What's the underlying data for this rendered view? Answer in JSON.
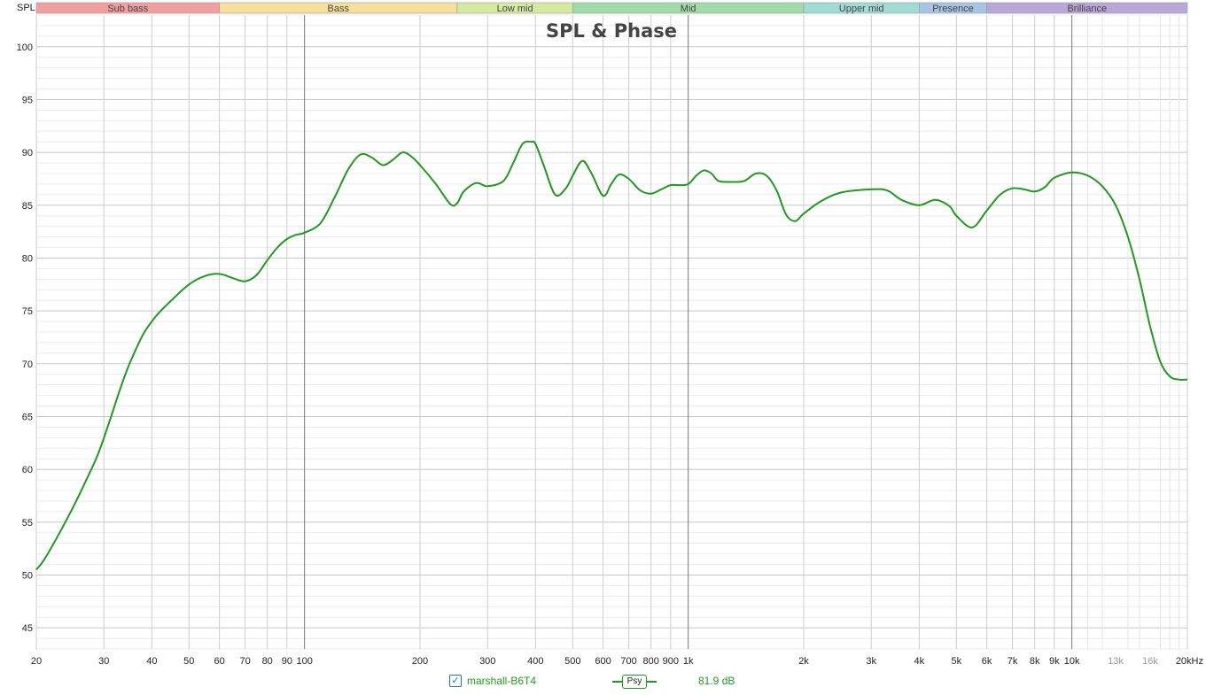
{
  "chart_data": {
    "type": "line",
    "title": "SPL & Phase",
    "ylabel": "SPL",
    "xscale": "log",
    "xlim": [
      20,
      20000
    ],
    "ylim": [
      43,
      103
    ],
    "grid": true,
    "bands": [
      {
        "name": "Sub bass",
        "from": 20,
        "to": 60,
        "color": "#f0a0a0"
      },
      {
        "name": "Bass",
        "from": 60,
        "to": 250,
        "color": "#f7df9c"
      },
      {
        "name": "Low mid",
        "from": 250,
        "to": 500,
        "color": "#d4eaa0"
      },
      {
        "name": "Mid",
        "from": 500,
        "to": 2000,
        "color": "#a0dca8"
      },
      {
        "name": "Upper mid",
        "from": 2000,
        "to": 4000,
        "color": "#a0dcd4"
      },
      {
        "name": "Presence",
        "from": 4000,
        "to": 6000,
        "color": "#a8c4e4"
      },
      {
        "name": "Brilliance",
        "from": 6000,
        "to": 20000,
        "color": "#b8a8d8"
      }
    ],
    "y_ticks": [
      45,
      50,
      55,
      60,
      65,
      70,
      75,
      80,
      85,
      90,
      95,
      100
    ],
    "x_ticks": [
      {
        "v": 20,
        "label": "20"
      },
      {
        "v": 30,
        "label": "30"
      },
      {
        "v": 40,
        "label": "40"
      },
      {
        "v": 50,
        "label": "50"
      },
      {
        "v": 60,
        "label": "60"
      },
      {
        "v": 70,
        "label": "70"
      },
      {
        "v": 80,
        "label": "80"
      },
      {
        "v": 90,
        "label": "90"
      },
      {
        "v": 100,
        "label": "100"
      },
      {
        "v": 200,
        "label": "200"
      },
      {
        "v": 300,
        "label": "300"
      },
      {
        "v": 400,
        "label": "400"
      },
      {
        "v": 500,
        "label": "500"
      },
      {
        "v": 600,
        "label": "600"
      },
      {
        "v": 700,
        "label": "700"
      },
      {
        "v": 800,
        "label": "800"
      },
      {
        "v": 900,
        "label": "900"
      },
      {
        "v": 1000,
        "label": "1k"
      },
      {
        "v": 2000,
        "label": "2k"
      },
      {
        "v": 3000,
        "label": "3k"
      },
      {
        "v": 4000,
        "label": "4k"
      },
      {
        "v": 5000,
        "label": "5k"
      },
      {
        "v": 6000,
        "label": "6k"
      },
      {
        "v": 7000,
        "label": "7k"
      },
      {
        "v": 8000,
        "label": "8k"
      },
      {
        "v": 9000,
        "label": "9k"
      },
      {
        "v": 10000,
        "label": "10k"
      },
      {
        "v": 13000,
        "label": "13k",
        "light": true
      },
      {
        "v": 16000,
        "label": "16k",
        "light": true
      },
      {
        "v": 20000,
        "label": "20kHz"
      }
    ],
    "series": [
      {
        "name": "marshall-B6T4",
        "color": "#1f9a1f",
        "x": [
          20,
          21,
          23,
          25,
          27,
          29,
          31,
          33,
          35,
          38,
          41,
          45,
          50,
          55,
          60,
          65,
          70,
          75,
          80,
          85,
          90,
          95,
          100,
          110,
          120,
          130,
          140,
          150,
          160,
          170,
          180,
          190,
          200,
          220,
          240,
          250,
          260,
          280,
          300,
          330,
          350,
          370,
          390,
          400,
          420,
          450,
          480,
          500,
          530,
          560,
          600,
          630,
          660,
          700,
          750,
          800,
          850,
          900,
          950,
          1000,
          1050,
          1100,
          1150,
          1200,
          1300,
          1400,
          1500,
          1600,
          1700,
          1800,
          1900,
          2000,
          2200,
          2500,
          3000,
          3300,
          3600,
          4000,
          4400,
          4800,
          5000,
          5500,
          6000,
          6500,
          7000,
          7500,
          8000,
          8500,
          9000,
          10000,
          11000,
          12000,
          13000,
          14000,
          15000,
          16000,
          17000,
          18000,
          19000,
          20000
        ],
        "y": [
          50.5,
          51.5,
          54.0,
          56.5,
          59.0,
          61.5,
          64.5,
          67.5,
          70.0,
          72.8,
          74.5,
          76.0,
          77.5,
          78.3,
          78.5,
          78.1,
          77.8,
          78.4,
          79.8,
          81.0,
          81.8,
          82.2,
          82.4,
          83.3,
          85.8,
          88.4,
          89.8,
          89.5,
          88.8,
          89.3,
          90.0,
          89.6,
          88.8,
          87.0,
          85.1,
          85.2,
          86.3,
          87.1,
          86.8,
          87.3,
          89.0,
          90.8,
          91.0,
          90.8,
          88.8,
          86.0,
          86.6,
          87.8,
          89.2,
          88.0,
          85.9,
          87.0,
          87.9,
          87.5,
          86.4,
          86.1,
          86.5,
          86.9,
          86.9,
          87.0,
          87.8,
          88.3,
          88.0,
          87.3,
          87.2,
          87.3,
          88.0,
          87.8,
          86.4,
          84.1,
          83.5,
          84.2,
          85.3,
          86.2,
          86.5,
          86.4,
          85.5,
          85.0,
          85.5,
          84.9,
          84.0,
          82.9,
          84.5,
          86.0,
          86.6,
          86.5,
          86.3,
          86.7,
          87.6,
          88.1,
          87.8,
          86.8,
          85.0,
          82.0,
          78.0,
          73.5,
          70.2,
          68.8,
          68.5,
          68.5
        ]
      }
    ]
  },
  "legend": {
    "checked": true,
    "check_glyph": "✓",
    "series_name": "marshall-B6T4",
    "smoothing_label": "Psy",
    "value_label": "81.9 dB"
  }
}
